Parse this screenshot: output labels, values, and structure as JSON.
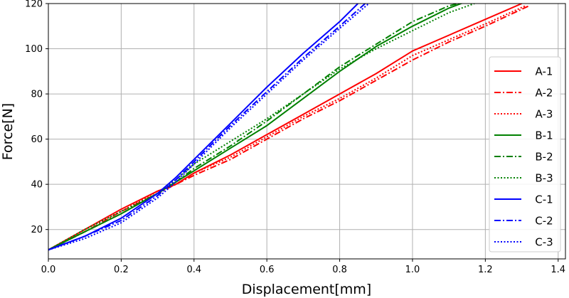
{
  "chart_data": {
    "type": "line",
    "xlabel": "Displacement[mm]",
    "ylabel": "Force[N]",
    "xlim": [
      0,
      1.42
    ],
    "ylim": [
      7,
      120
    ],
    "xticks": [
      0.0,
      0.2,
      0.4,
      0.6,
      0.8,
      1.0,
      1.2,
      1.4
    ],
    "yticks": [
      20,
      40,
      60,
      80,
      100,
      120
    ],
    "xtick_labels": [
      "0.0",
      "0.2",
      "0.4",
      "0.6",
      "0.8",
      "1.0",
      "1.2",
      "1.4"
    ],
    "ytick_labels": [
      "20",
      "40",
      "60",
      "80",
      "100",
      "120"
    ],
    "grid": true,
    "legend_position": "right",
    "colors": {
      "A": "#ff0000",
      "B": "#008000",
      "C": "#0000ff"
    },
    "series": [
      {
        "name": "A-1",
        "color": "#ff0000",
        "style": "solid",
        "x": [
          0.0,
          0.1,
          0.2,
          0.3,
          0.35,
          0.4,
          0.5,
          0.6,
          0.7,
          0.8,
          0.9,
          1.0,
          1.1,
          1.2,
          1.3
        ],
        "y": [
          11,
          20,
          29,
          37,
          40,
          45,
          53,
          62,
          71,
          80,
          89,
          99,
          106,
          113,
          120
        ]
      },
      {
        "name": "A-2",
        "color": "#ff0000",
        "style": "dashdot",
        "x": [
          0.0,
          0.1,
          0.2,
          0.3,
          0.35,
          0.4,
          0.5,
          0.6,
          0.7,
          0.8,
          0.9,
          1.0,
          1.1,
          1.2,
          1.32
        ],
        "y": [
          11,
          19,
          28,
          36,
          40,
          44,
          51,
          60,
          69,
          77,
          86,
          95,
          103,
          110,
          119
        ]
      },
      {
        "name": "A-3",
        "color": "#ff0000",
        "style": "dotted",
        "x": [
          0.0,
          0.1,
          0.2,
          0.3,
          0.35,
          0.4,
          0.5,
          0.6,
          0.7,
          0.8,
          0.9,
          1.0,
          1.1,
          1.2,
          1.31
        ],
        "y": [
          11,
          20,
          28,
          37,
          40,
          45,
          52,
          61,
          70,
          78,
          87,
          97,
          104,
          111,
          119
        ]
      },
      {
        "name": "B-1",
        "color": "#008000",
        "style": "solid",
        "x": [
          0.0,
          0.1,
          0.2,
          0.3,
          0.35,
          0.4,
          0.5,
          0.6,
          0.7,
          0.8,
          0.9,
          1.0,
          1.1,
          1.15
        ],
        "y": [
          11,
          19,
          27,
          36,
          41,
          46,
          56,
          66,
          78,
          90,
          101,
          110,
          118,
          121
        ]
      },
      {
        "name": "B-2",
        "color": "#008000",
        "style": "dashdot",
        "x": [
          0.0,
          0.1,
          0.2,
          0.3,
          0.35,
          0.4,
          0.5,
          0.6,
          0.7,
          0.8,
          0.9,
          1.0,
          1.1,
          1.15
        ],
        "y": [
          11,
          19,
          27,
          36,
          41,
          47,
          57,
          68,
          80,
          92,
          102,
          112,
          119,
          121
        ]
      },
      {
        "name": "B-3",
        "color": "#008000",
        "style": "dotted",
        "x": [
          0.0,
          0.1,
          0.2,
          0.3,
          0.35,
          0.4,
          0.5,
          0.6,
          0.7,
          0.8,
          0.9,
          1.0,
          1.1,
          1.17
        ],
        "y": [
          11,
          20,
          28,
          36,
          42,
          49,
          59,
          69,
          80,
          91,
          100,
          108,
          116,
          120
        ]
      },
      {
        "name": "C-1",
        "color": "#0000ff",
        "style": "solid",
        "x": [
          0.0,
          0.1,
          0.2,
          0.3,
          0.35,
          0.4,
          0.5,
          0.6,
          0.7,
          0.8,
          0.85
        ],
        "y": [
          11,
          17,
          25,
          36,
          43,
          51,
          67,
          83,
          98,
          112,
          120
        ]
      },
      {
        "name": "C-2",
        "color": "#0000ff",
        "style": "dashdot",
        "x": [
          0.0,
          0.1,
          0.2,
          0.3,
          0.35,
          0.4,
          0.5,
          0.6,
          0.7,
          0.8,
          0.87
        ],
        "y": [
          11,
          17,
          24,
          35,
          42,
          50,
          66,
          81,
          96,
          110,
          120
        ]
      },
      {
        "name": "C-3",
        "color": "#0000ff",
        "style": "dotted",
        "x": [
          0.0,
          0.1,
          0.2,
          0.3,
          0.35,
          0.4,
          0.5,
          0.6,
          0.7,
          0.8,
          0.88
        ],
        "y": [
          11,
          16,
          23,
          34,
          41,
          49,
          65,
          80,
          95,
          109,
          120
        ]
      }
    ]
  }
}
